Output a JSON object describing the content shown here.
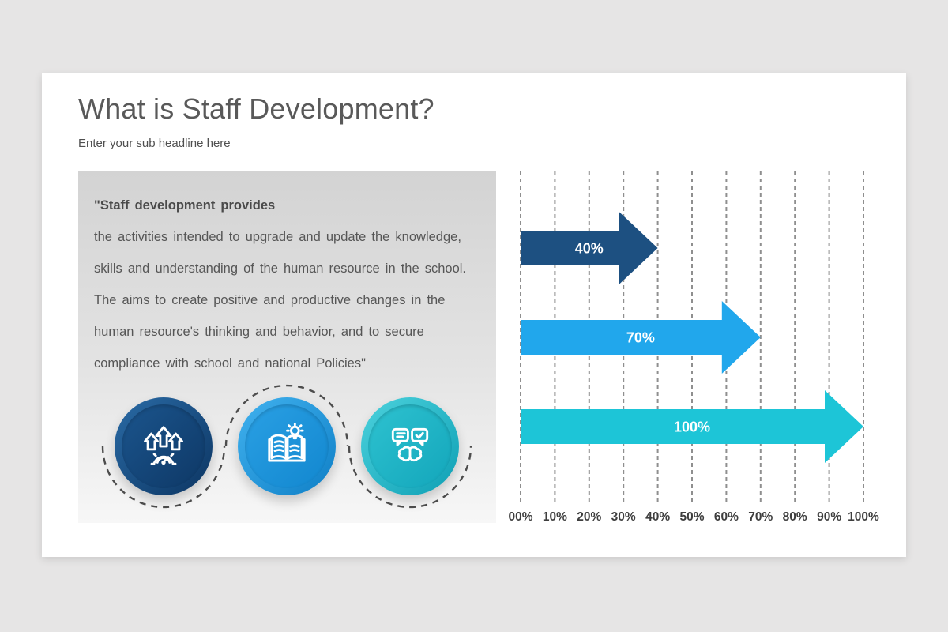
{
  "slide": {
    "title": "What is Staff Development?",
    "subtitle": "Enter your sub headline here"
  },
  "quote_panel": {
    "bold_line": "\"Staff development provides",
    "lines": [
      "the activities intended to upgrade and update the knowledge,",
      "skills and understanding of the human resource in the school.",
      "The aims to create positive and productive changes in the",
      "human resource's thinking and behavior, and to secure",
      "compliance with school and national Policies\""
    ]
  },
  "circles": [
    {
      "icon": "growth-arrows-gauge-icon",
      "outer_start": "#2a6ba6",
      "outer_end": "#0c3562",
      "inner_start": "#1b558d",
      "inner_end": "#0e3866"
    },
    {
      "icon": "open-book-lightbulb-icon",
      "outer_start": "#41b2ef",
      "outer_end": "#0f7fc6",
      "inner_start": "#2aa0e4",
      "inner_end": "#1287cf"
    },
    {
      "icon": "chat-bubbles-brain-icon",
      "outer_start": "#4cd2dd",
      "outer_end": "#0e9fb4",
      "inner_start": "#2ec2d0",
      "inner_end": "#13a6bb"
    }
  ],
  "decor": {
    "ring_color": "#4d4d4d"
  },
  "chart_data": {
    "type": "bar",
    "orientation": "horizontal-arrow-bars",
    "series": [
      {
        "label": "40%",
        "value": 40,
        "color": "#1d5081"
      },
      {
        "label": "70%",
        "value": 70,
        "color": "#21a7ec"
      },
      {
        "label": "100%",
        "value": 100,
        "color": "#1dc5d7"
      }
    ],
    "x_ticks": [
      "00%",
      "10%",
      "20%",
      "30%",
      "40%",
      "50%",
      "60%",
      "70%",
      "80%",
      "90%",
      "100%"
    ],
    "xlim": [
      0,
      100
    ],
    "grid": "dashed-vertical",
    "gridline_color": "#8f8f8f",
    "tick_color": "#3e3e3e",
    "bar_label_color": "#ffffff",
    "title": "",
    "xlabel": "",
    "ylabel": ""
  }
}
